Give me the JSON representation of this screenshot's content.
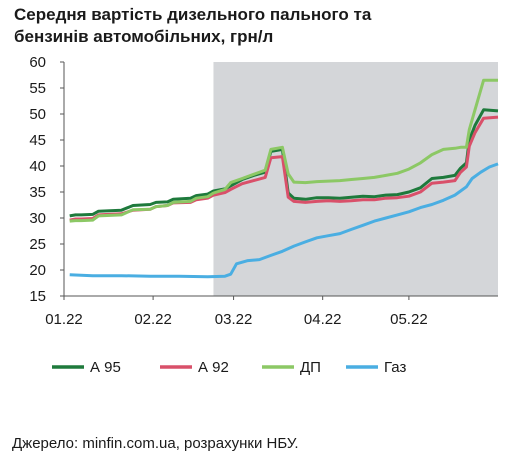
{
  "title_line1": "Середня вартість дизельного пального та",
  "title_line2": "бензинів автомобільних, грн/л",
  "source": "Джерело: minfin.com.ua, розрахунки НБУ.",
  "chart_data": {
    "type": "line",
    "title": "Середня вартість дизельного пального та бензинів автомобільних, грн/л",
    "xlabel": "",
    "ylabel": "",
    "ylim": [
      15,
      60
    ],
    "yticks": [
      15,
      20,
      25,
      30,
      35,
      40,
      45,
      50,
      55,
      60
    ],
    "xlim": [
      0,
      151
    ],
    "xticks": [
      {
        "label": "01.22",
        "x": 0
      },
      {
        "label": "02.22",
        "x": 31
      },
      {
        "label": "03.22",
        "x": 59
      },
      {
        "label": "04.22",
        "x": 90
      },
      {
        "label": "05.22",
        "x": 120
      }
    ],
    "shaded_region": {
      "from": 52,
      "to": 151,
      "color": "#d4d6d9"
    },
    "grid": false,
    "legend_position": "bottom",
    "series": [
      {
        "name": "А 95",
        "color": "#1e7a3c",
        "points": [
          [
            2,
            30.4
          ],
          [
            4,
            30.6
          ],
          [
            6,
            30.6
          ],
          [
            10,
            30.7
          ],
          [
            12,
            31.3
          ],
          [
            20,
            31.5
          ],
          [
            24,
            32.4
          ],
          [
            30,
            32.6
          ],
          [
            32,
            33.0
          ],
          [
            36,
            33.1
          ],
          [
            38,
            33.6
          ],
          [
            44,
            33.8
          ],
          [
            46,
            34.3
          ],
          [
            50,
            34.6
          ],
          [
            52,
            35.2
          ],
          [
            56,
            35.6
          ],
          [
            58,
            36.2
          ],
          [
            62,
            37.4
          ],
          [
            66,
            38.2
          ],
          [
            70,
            38.8
          ],
          [
            72,
            42.8
          ],
          [
            76,
            43.2
          ],
          [
            78,
            34.8
          ],
          [
            80,
            33.8
          ],
          [
            84,
            33.6
          ],
          [
            88,
            33.9
          ],
          [
            92,
            33.9
          ],
          [
            96,
            33.8
          ],
          [
            100,
            34.0
          ],
          [
            104,
            34.2
          ],
          [
            108,
            34.1
          ],
          [
            112,
            34.4
          ],
          [
            116,
            34.5
          ],
          [
            120,
            35.0
          ],
          [
            124,
            35.8
          ],
          [
            128,
            37.6
          ],
          [
            132,
            37.8
          ],
          [
            136,
            38.2
          ],
          [
            138,
            39.6
          ],
          [
            140,
            40.6
          ],
          [
            141,
            45.0
          ],
          [
            143,
            47.8
          ],
          [
            146,
            50.8
          ],
          [
            151,
            50.6
          ]
        ]
      },
      {
        "name": "А 92",
        "color": "#d9506a",
        "points": [
          [
            2,
            29.6
          ],
          [
            4,
            29.8
          ],
          [
            6,
            29.8
          ],
          [
            10,
            29.9
          ],
          [
            12,
            30.6
          ],
          [
            20,
            30.8
          ],
          [
            24,
            31.5
          ],
          [
            30,
            31.7
          ],
          [
            32,
            32.2
          ],
          [
            36,
            32.4
          ],
          [
            38,
            32.9
          ],
          [
            44,
            33.0
          ],
          [
            46,
            33.5
          ],
          [
            50,
            33.8
          ],
          [
            52,
            34.4
          ],
          [
            56,
            34.9
          ],
          [
            58,
            35.5
          ],
          [
            62,
            36.6
          ],
          [
            66,
            37.2
          ],
          [
            70,
            37.8
          ],
          [
            72,
            41.6
          ],
          [
            76,
            41.8
          ],
          [
            78,
            34.0
          ],
          [
            80,
            33.2
          ],
          [
            84,
            33.0
          ],
          [
            88,
            33.2
          ],
          [
            92,
            33.3
          ],
          [
            96,
            33.2
          ],
          [
            100,
            33.3
          ],
          [
            104,
            33.5
          ],
          [
            108,
            33.5
          ],
          [
            112,
            33.8
          ],
          [
            116,
            33.9
          ],
          [
            120,
            34.2
          ],
          [
            124,
            35.0
          ],
          [
            128,
            36.7
          ],
          [
            132,
            36.9
          ],
          [
            136,
            37.2
          ],
          [
            138,
            38.8
          ],
          [
            140,
            39.8
          ],
          [
            141,
            43.8
          ],
          [
            143,
            46.4
          ],
          [
            146,
            49.2
          ],
          [
            151,
            49.4
          ]
        ]
      },
      {
        "name": "ДП",
        "color": "#8cc865",
        "points": [
          [
            2,
            29.4
          ],
          [
            4,
            29.5
          ],
          [
            6,
            29.5
          ],
          [
            10,
            29.6
          ],
          [
            12,
            30.4
          ],
          [
            20,
            30.6
          ],
          [
            24,
            31.6
          ],
          [
            30,
            31.7
          ],
          [
            32,
            32.2
          ],
          [
            36,
            32.4
          ],
          [
            38,
            33.0
          ],
          [
            44,
            33.2
          ],
          [
            46,
            33.8
          ],
          [
            50,
            34.1
          ],
          [
            52,
            34.8
          ],
          [
            56,
            35.5
          ],
          [
            58,
            36.8
          ],
          [
            62,
            37.6
          ],
          [
            66,
            38.4
          ],
          [
            70,
            39.2
          ],
          [
            72,
            43.2
          ],
          [
            76,
            43.6
          ],
          [
            78,
            38.5
          ],
          [
            80,
            36.9
          ],
          [
            84,
            36.8
          ],
          [
            88,
            37.0
          ],
          [
            92,
            37.1
          ],
          [
            96,
            37.2
          ],
          [
            100,
            37.4
          ],
          [
            104,
            37.6
          ],
          [
            108,
            37.8
          ],
          [
            112,
            38.2
          ],
          [
            116,
            38.6
          ],
          [
            120,
            39.4
          ],
          [
            124,
            40.6
          ],
          [
            128,
            42.2
          ],
          [
            132,
            43.2
          ],
          [
            136,
            43.4
          ],
          [
            138,
            43.6
          ],
          [
            140,
            43.6
          ],
          [
            141,
            47.0
          ],
          [
            143,
            50.8
          ],
          [
            146,
            56.5
          ],
          [
            151,
            56.5
          ]
        ]
      },
      {
        "name": "Газ",
        "color": "#4aaee2",
        "points": [
          [
            2,
            19.1
          ],
          [
            10,
            18.9
          ],
          [
            20,
            18.9
          ],
          [
            30,
            18.8
          ],
          [
            40,
            18.8
          ],
          [
            50,
            18.7
          ],
          [
            56,
            18.8
          ],
          [
            58,
            19.2
          ],
          [
            60,
            21.2
          ],
          [
            64,
            21.8
          ],
          [
            68,
            22.0
          ],
          [
            72,
            22.8
          ],
          [
            76,
            23.6
          ],
          [
            80,
            24.6
          ],
          [
            84,
            25.4
          ],
          [
            88,
            26.2
          ],
          [
            92,
            26.6
          ],
          [
            96,
            27.0
          ],
          [
            100,
            27.8
          ],
          [
            104,
            28.6
          ],
          [
            108,
            29.4
          ],
          [
            112,
            30.0
          ],
          [
            116,
            30.6
          ],
          [
            120,
            31.2
          ],
          [
            124,
            32.0
          ],
          [
            128,
            32.6
          ],
          [
            132,
            33.4
          ],
          [
            136,
            34.4
          ],
          [
            138,
            35.2
          ],
          [
            140,
            36.0
          ],
          [
            142,
            37.6
          ],
          [
            145,
            38.8
          ],
          [
            148,
            39.8
          ],
          [
            151,
            40.4
          ]
        ]
      }
    ]
  }
}
